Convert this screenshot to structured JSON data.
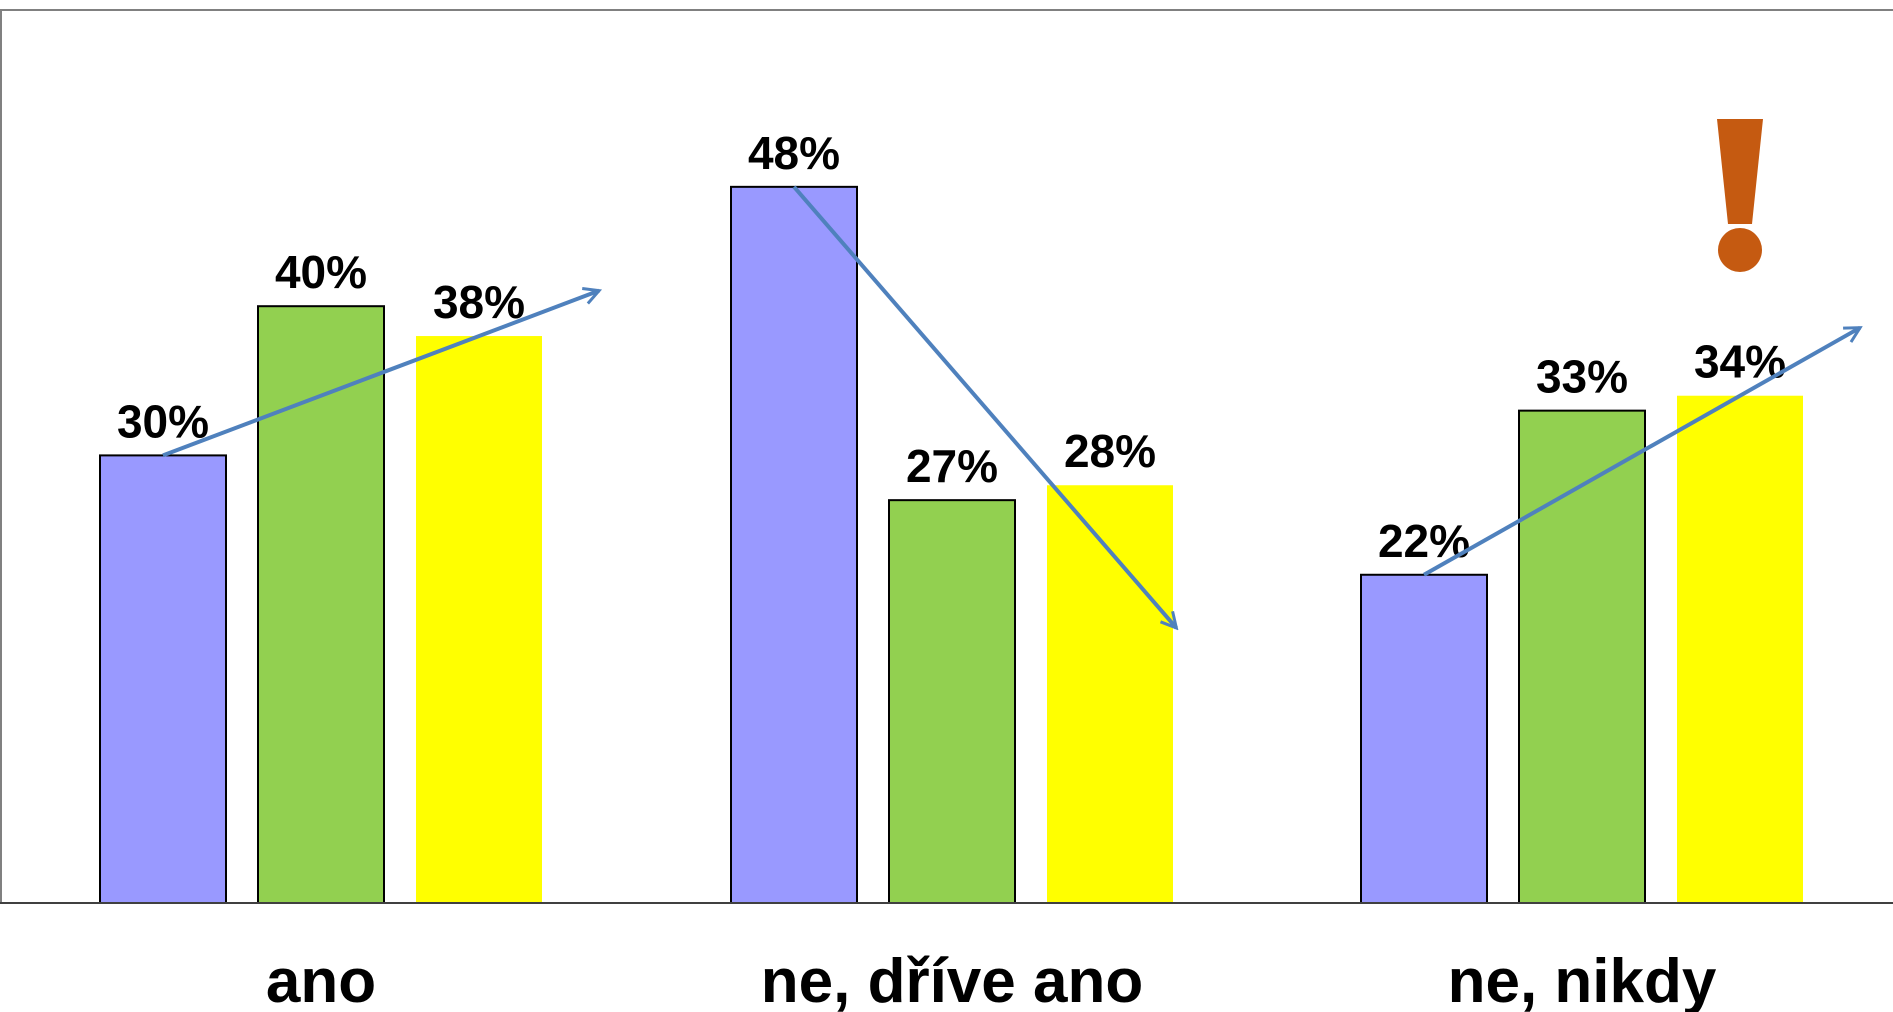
{
  "chart_data": {
    "type": "bar",
    "categories": [
      "ano",
      "ne, dříve ano",
      "ne, nikdy"
    ],
    "series": [
      {
        "values": [
          30,
          48,
          22
        ],
        "color": "#9999ff",
        "outlined": true
      },
      {
        "values": [
          40,
          27,
          33
        ],
        "color": "#92d050",
        "outlined": true
      },
      {
        "values": [
          38,
          28,
          34
        ],
        "color": "#ffff00",
        "outlined": false
      }
    ],
    "value_labels": [
      [
        "30%",
        "48%",
        "22%"
      ],
      [
        "40%",
        "27%",
        "33%"
      ],
      [
        "38%",
        "28%",
        "34%"
      ]
    ],
    "ylim": [
      0,
      60
    ],
    "grid": false,
    "title": "",
    "xlabel": "",
    "ylabel": "",
    "trend_arrows": [
      {
        "category": "ano",
        "direction": "up"
      },
      {
        "category": "ne, dříve ano",
        "direction": "down"
      },
      {
        "category": "ne, nikdy",
        "direction": "up"
      }
    ],
    "annotation_icon": {
      "name": "exclamation-icon",
      "category": "ne, nikdy",
      "color": "#c55a11"
    },
    "arrow_color": "#4f81bd"
  }
}
